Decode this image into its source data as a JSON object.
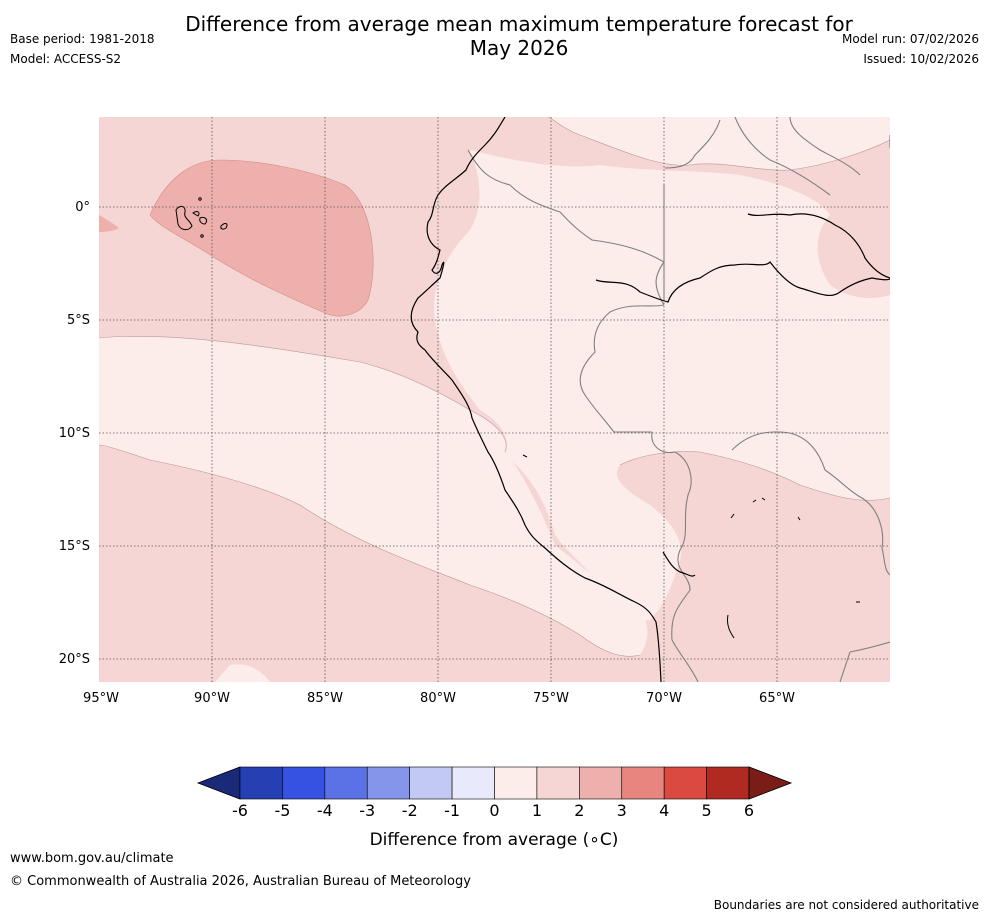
{
  "header": {
    "title_line1": "Difference from average mean maximum temperature forecast for",
    "title_line2": "May 2026",
    "base_period": "Base period: 1981-2018",
    "model": "Model: ACCESS-S2",
    "model_run": "Model run: 07/02/2026",
    "issued": "Issued: 10/02/2026"
  },
  "map": {
    "latitudes": [
      "0°",
      "5°S",
      "10°S",
      "15°S",
      "20°S"
    ],
    "longitudes": [
      "95°W",
      "90°W",
      "85°W",
      "80°W",
      "75°W",
      "70°W",
      "65°W"
    ],
    "gridlines": "dotted",
    "colors": {
      "ocean_anomaly_1_2": "#f5d6d4",
      "anomaly_0_1": "#fcecea",
      "anomaly_2_3": "#edb0ac",
      "coastline": "#000000",
      "borders": "#808080"
    }
  },
  "colorbar": {
    "label": "Difference from average (∘C)",
    "ticks": [
      "-6",
      "-5",
      "-4",
      "-3",
      "-2",
      "-1",
      "0",
      "1",
      "2",
      "3",
      "4",
      "5",
      "6"
    ],
    "colors": [
      "#1a2a78",
      "#2540b3",
      "#3552e2",
      "#5a72e6",
      "#8596ea",
      "#c2c9f4",
      "#e8eafb",
      "#fcecea",
      "#f5d6d4",
      "#edb0ac",
      "#e6867e",
      "#da4a40",
      "#b02a22",
      "#7a1d18"
    ]
  },
  "footer": {
    "url": "www.bom.gov.au/climate",
    "copyright": "© Commonwealth of Australia 2026, Australian Bureau of Meteorology",
    "note": "Boundaries are not considered authoritative"
  }
}
